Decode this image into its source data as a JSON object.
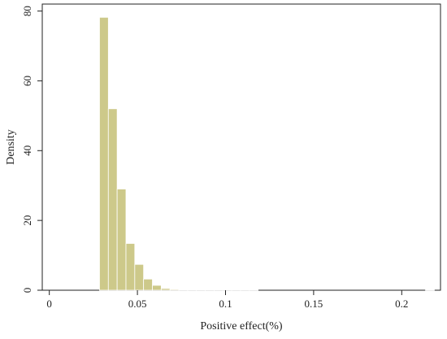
{
  "chart_data": {
    "type": "bar",
    "title": "",
    "xlabel": "Positive effect(%)",
    "ylabel": "Density",
    "xlim": [
      -0.004,
      0.222
    ],
    "ylim": [
      0,
      82
    ],
    "x_ticks": [
      0,
      0.05,
      0.1,
      0.15,
      0.2
    ],
    "x_tick_labels": [
      "0",
      "0.05",
      "0.1",
      "0.15",
      "0.2"
    ],
    "y_ticks": [
      0,
      20,
      40,
      60,
      80
    ],
    "y_tick_labels": [
      "0",
      "20",
      "40",
      "60",
      "80"
    ],
    "grid": false,
    "legend": "none",
    "bar_color": "#cdc98a",
    "bar_edge_color": "#ffffff",
    "bins": [
      {
        "start": 0.0285,
        "end": 0.0335,
        "value": 78.2
      },
      {
        "start": 0.0335,
        "end": 0.0385,
        "value": 52.0
      },
      {
        "start": 0.0385,
        "end": 0.0435,
        "value": 29.0
      },
      {
        "start": 0.0435,
        "end": 0.0485,
        "value": 13.4
      },
      {
        "start": 0.0485,
        "end": 0.0535,
        "value": 7.4
      },
      {
        "start": 0.0535,
        "end": 0.0585,
        "value": 3.2
      },
      {
        "start": 0.0585,
        "end": 0.0635,
        "value": 1.4
      },
      {
        "start": 0.0635,
        "end": 0.0685,
        "value": 0.5
      },
      {
        "start": 0.0685,
        "end": 0.0735,
        "value": 0.25
      },
      {
        "start": 0.0735,
        "end": 0.0785,
        "value": 0.15
      },
      {
        "start": 0.0785,
        "end": 0.0835,
        "value": 0.12
      },
      {
        "start": 0.0835,
        "end": 0.0885,
        "value": 0.1
      },
      {
        "start": 0.0885,
        "end": 0.0935,
        "value": 0.08
      },
      {
        "start": 0.0935,
        "end": 0.0985,
        "value": 0.06
      },
      {
        "start": 0.0985,
        "end": 0.1035,
        "value": 0.05
      },
      {
        "start": 0.1035,
        "end": 0.1085,
        "value": 0.1
      },
      {
        "start": 0.1085,
        "end": 0.1135,
        "value": 0.08
      },
      {
        "start": 0.1135,
        "end": 0.1185,
        "value": 0.05
      },
      {
        "start": 0.2135,
        "end": 0.2185,
        "value": 0.05
      }
    ]
  }
}
